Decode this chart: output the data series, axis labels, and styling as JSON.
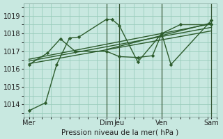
{
  "bg_color": "#c8e8e0",
  "grid_color": "#99ccbb",
  "line_color": "#2d5c2d",
  "xlabel": "Pression niveau de la mer( hPa )",
  "ylim": [
    1013.3,
    1019.7
  ],
  "yticks": [
    1014,
    1015,
    1016,
    1017,
    1018,
    1019
  ],
  "xlim": [
    0,
    10.5
  ],
  "xtick_positions": [
    0.3,
    4.5,
    5.2,
    7.5,
    10.2
  ],
  "xtick_labels": [
    "Mer",
    "Dim",
    "Jeu",
    "Ven",
    "Sam"
  ],
  "vlines": [
    4.5,
    5.2,
    7.5,
    10.2
  ],
  "series1_x": [
    0.3,
    1.2,
    1.8,
    2.5,
    3.0,
    4.5,
    4.8,
    5.2,
    6.2,
    7.5,
    8.5,
    10.2
  ],
  "series1_y": [
    1013.65,
    1014.1,
    1016.25,
    1017.75,
    1017.8,
    1018.8,
    1018.8,
    1018.45,
    1016.4,
    1018.0,
    1018.5,
    1018.5
  ],
  "series2_x": [
    0.3,
    1.3,
    2.0,
    2.8,
    4.5,
    5.2,
    6.2,
    7.0,
    7.5,
    8.0,
    10.2
  ],
  "series2_y": [
    1016.25,
    1016.9,
    1017.7,
    1017.0,
    1017.0,
    1016.7,
    1016.65,
    1016.75,
    1018.0,
    1016.25,
    1018.75
  ],
  "trend1_x": [
    0.3,
    10.2
  ],
  "trend1_y": [
    1016.55,
    1018.55
  ],
  "trend2_x": [
    0.3,
    10.2
  ],
  "trend2_y": [
    1016.45,
    1018.35
  ],
  "trend3_x": [
    0.3,
    10.2
  ],
  "trend3_y": [
    1016.3,
    1018.15
  ],
  "trend4_x": [
    4.5,
    10.2
  ],
  "trend4_y": [
    1017.1,
    1018.6
  ],
  "lw": 1.0,
  "ms": 2.8
}
